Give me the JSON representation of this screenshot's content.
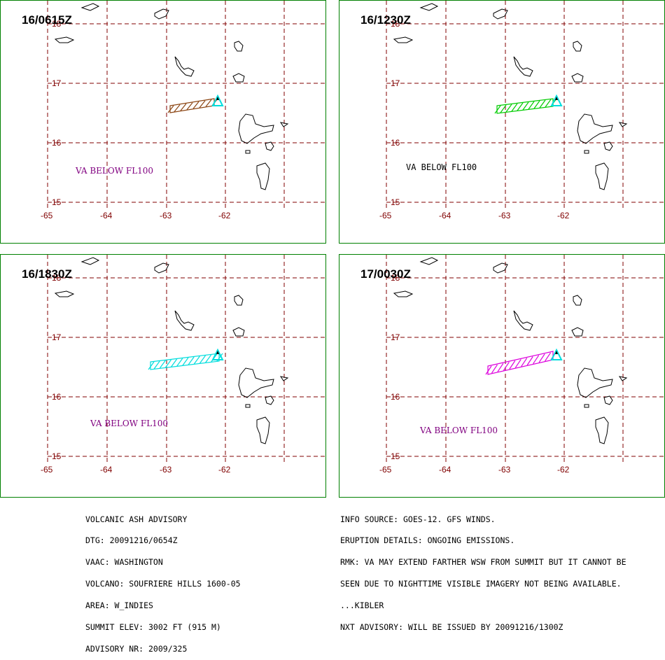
{
  "panels": [
    {
      "time": "16/0615Z",
      "va_text": "VA BELOW FL100",
      "va_color": "#800080",
      "ash_color": "#8B4513"
    },
    {
      "time": "16/1230Z",
      "va_text": "VA BELOW FL100",
      "va_color": "#000000",
      "ash_color": "#00CC00"
    },
    {
      "time": "16/1830Z",
      "va_text": "VA BELOW FL100",
      "va_color": "#800080",
      "ash_color": "#00DDDD"
    },
    {
      "time": "17/0030Z",
      "va_text": "VA BELOW FL100",
      "va_color": "#800080",
      "ash_color": "#DD00DD"
    }
  ],
  "axes": {
    "lon_labels": [
      "-65",
      "-64",
      "-63",
      "-62"
    ],
    "lat_labels": [
      "18",
      "17",
      "16",
      "15"
    ]
  },
  "colors": {
    "border": "#008000",
    "grid": "#800000",
    "volcano": "#00DDDD"
  },
  "advisory_left": {
    "line1": "VOLCANIC ASH ADVISORY",
    "line2": "DTG: 20091216/0654Z",
    "line3": "VAAC: WASHINGTON",
    "line4": "VOLCANO: SOUFRIERE HILLS 1600-05",
    "line5": "AREA: W_INDIES",
    "line6": "SUMMIT ELEV: 3002 FT (915 M)",
    "line7": "ADVISORY NR: 2009/325"
  },
  "advisory_right": {
    "line1": "INFO SOURCE: GOES-12. GFS WINDS.",
    "line2": "ERUPTION DETAILS: ONGOING EMISSIONS.",
    "line3": "RMK: VA MAY EXTEND FARTHER WSW FROM SUMMIT BUT IT CANNOT BE",
    "line4": "SEEN DUE TO NIGHTTIME VISIBLE IMAGERY NOT BEING AVAILABLE.",
    "line5": "...KIBLER",
    "line6": "NXT ADVISORY: WILL BE ISSUED BY 20091216/1300Z"
  }
}
